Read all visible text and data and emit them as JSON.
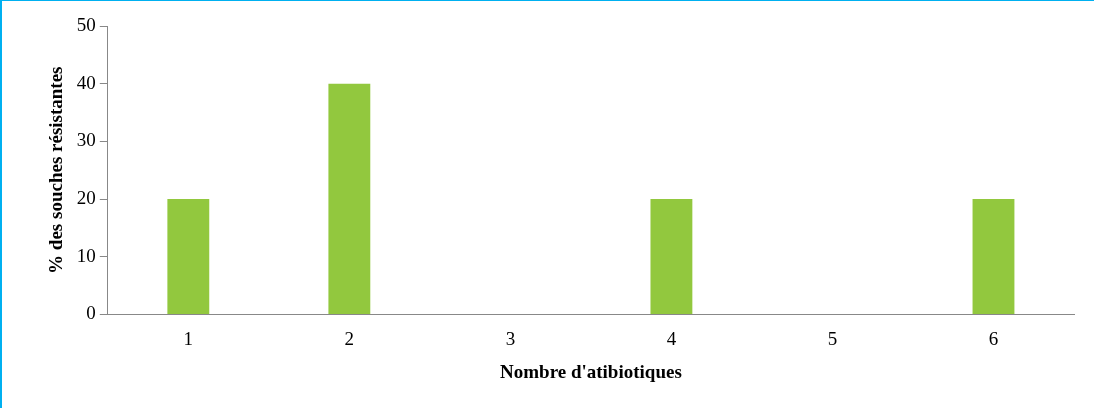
{
  "chart_data": {
    "type": "bar",
    "xlabel": "Nombre d'atibiotiques",
    "ylabel": "% des souches résistantes",
    "categories": [
      "1",
      "2",
      "3",
      "4",
      "5",
      "6"
    ],
    "values": [
      20,
      40,
      0,
      20,
      0,
      20
    ],
    "color": "#92c83e",
    "ylim": [
      0,
      50
    ],
    "yticks": [
      0,
      10,
      20,
      30,
      40,
      50
    ],
    "grid": false,
    "legend": false
  }
}
